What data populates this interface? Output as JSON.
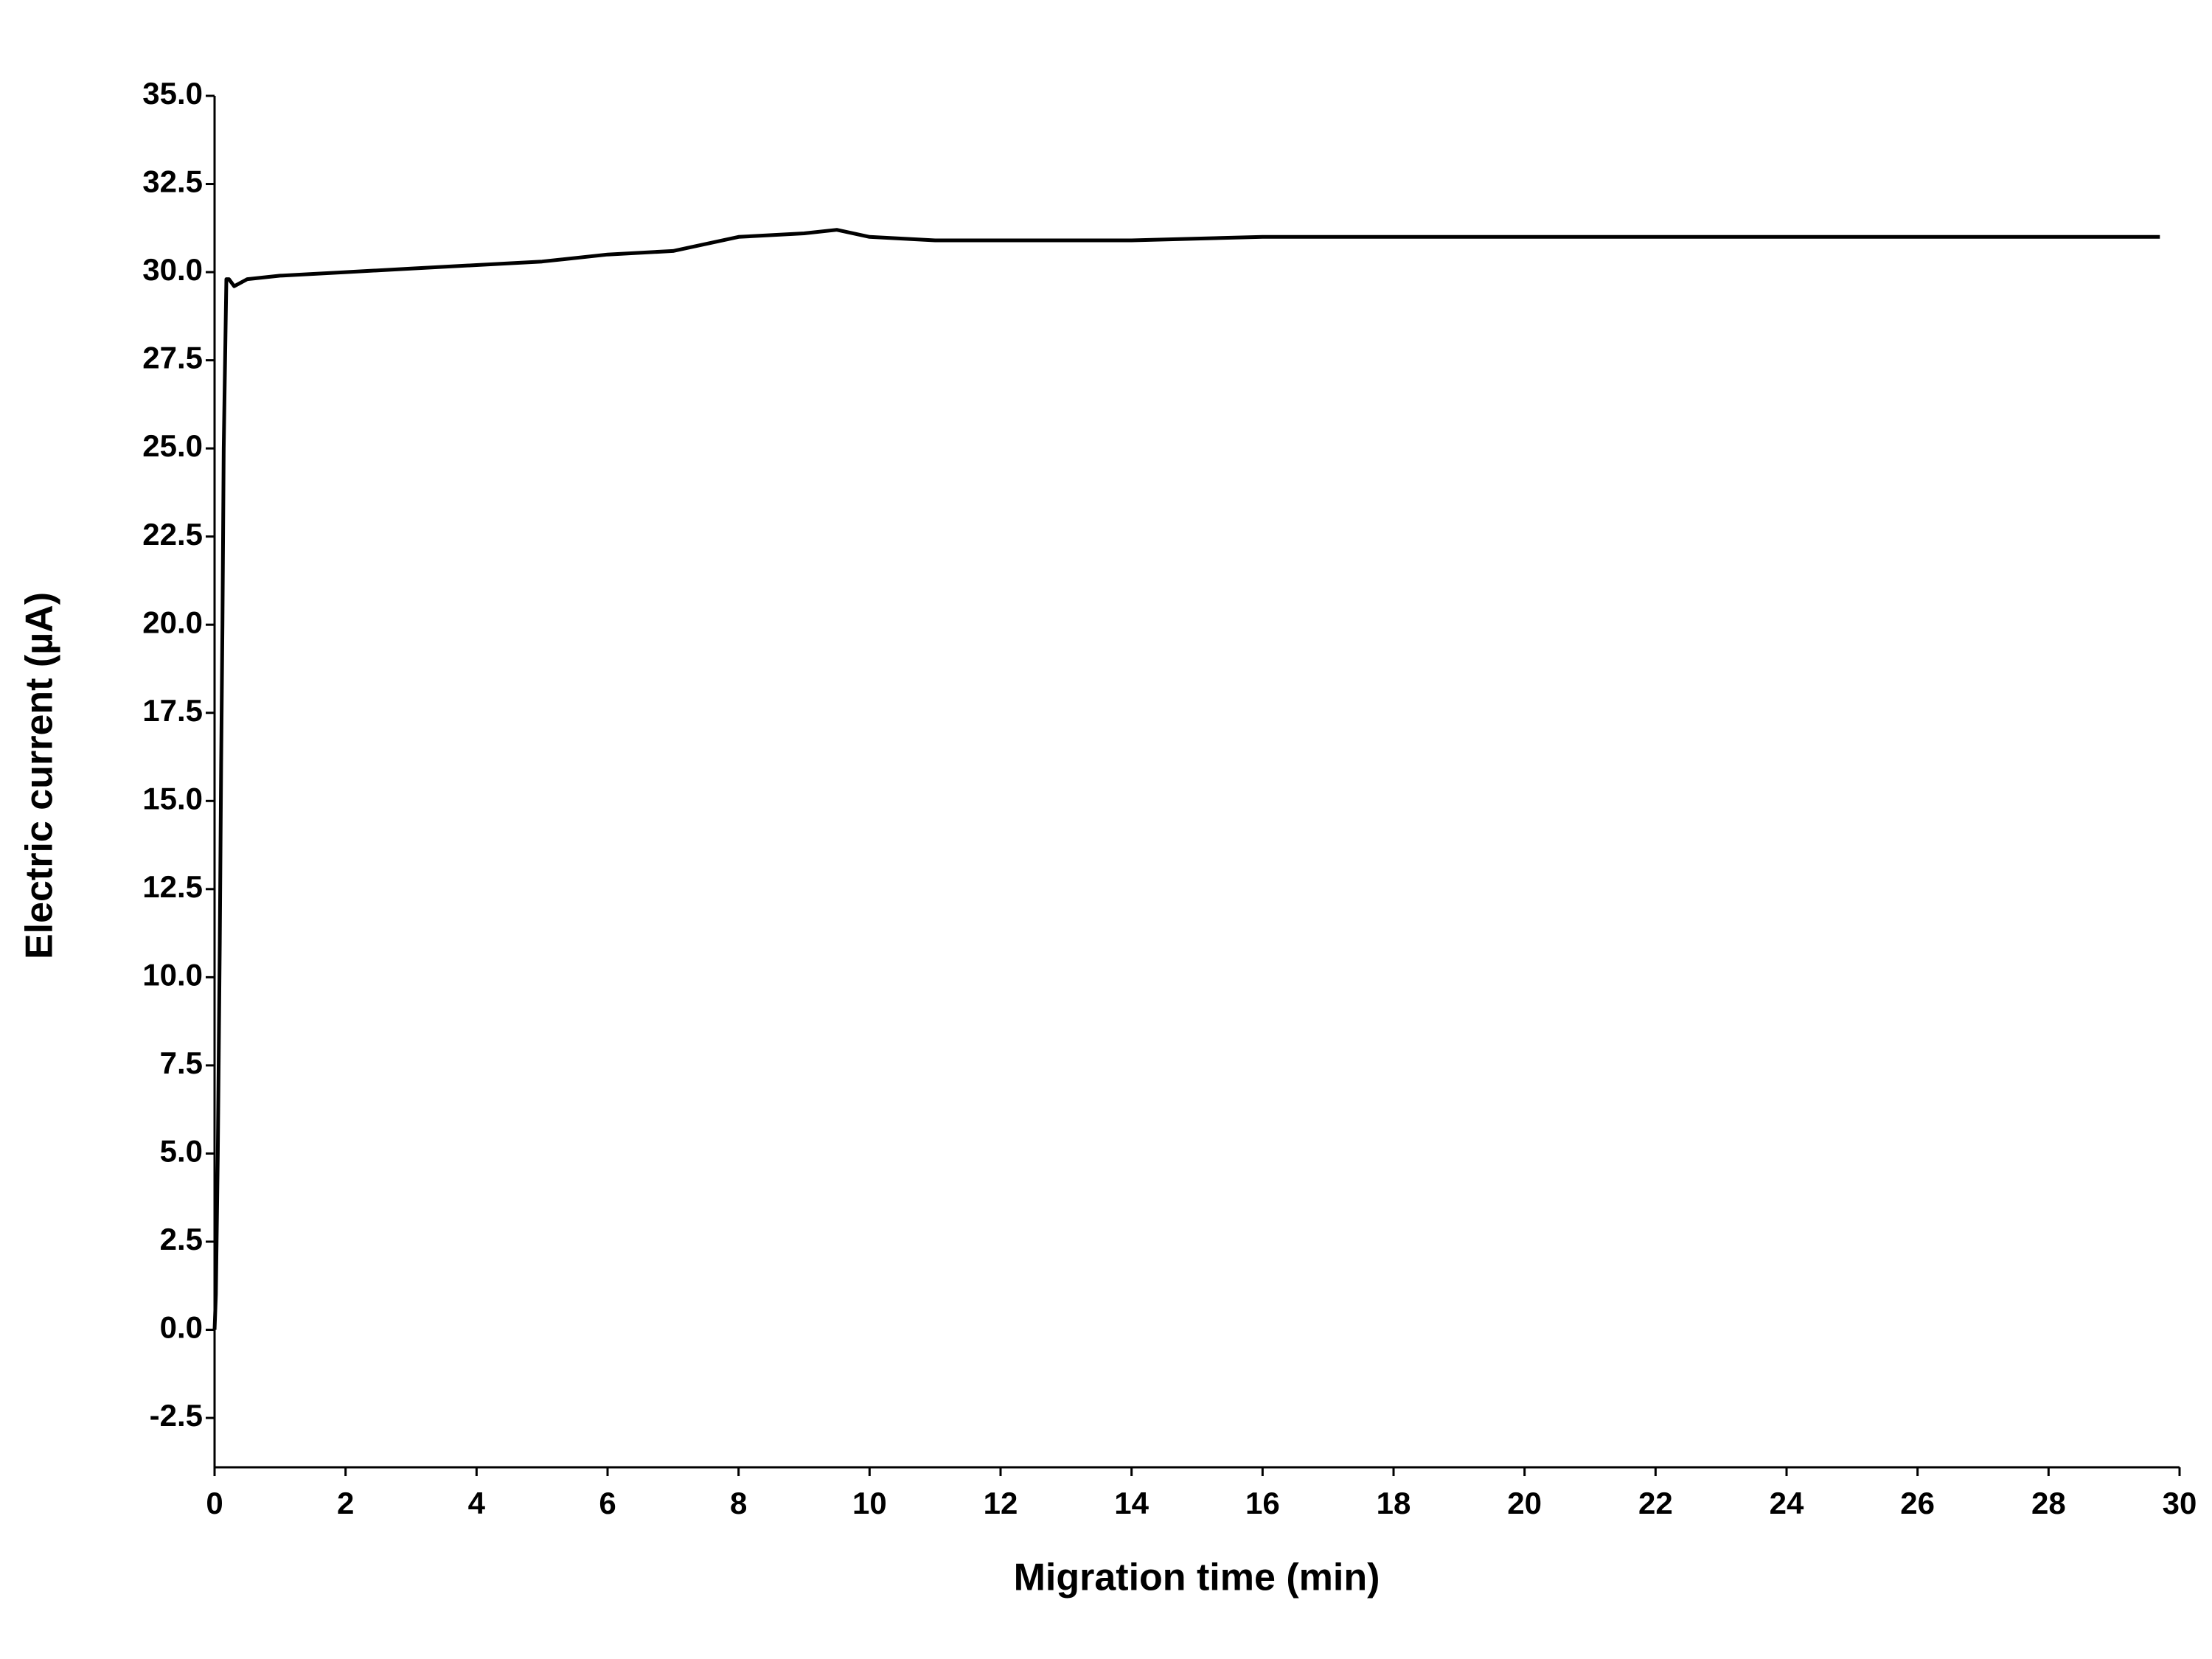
{
  "chart_data": {
    "type": "line",
    "x_label": "Migration time (min)",
    "y_label": "Electric current (µA)",
    "xlim": [
      0,
      30
    ],
    "ylim": [
      -3.9,
      35
    ],
    "xticks": [
      0,
      2,
      4,
      6,
      8,
      10,
      12,
      14,
      16,
      18,
      20,
      22,
      24,
      26,
      28,
      30
    ],
    "yticks": [
      {
        "value": -2.5,
        "label": "-2.5"
      },
      {
        "value": 0,
        "label": "0.0"
      },
      {
        "value": 2.5,
        "label": "2.5"
      },
      {
        "value": 5,
        "label": "5.0"
      },
      {
        "value": 7.5,
        "label": "7.5"
      },
      {
        "value": 10,
        "label": "10.0"
      },
      {
        "value": 12.5,
        "label": "12.5"
      },
      {
        "value": 15,
        "label": "15.0"
      },
      {
        "value": 17.5,
        "label": "17.5"
      },
      {
        "value": 20,
        "label": "20.0"
      },
      {
        "value": 22.5,
        "label": "22.5"
      },
      {
        "value": 25,
        "label": "25.0"
      },
      {
        "value": 27.5,
        "label": "27.5"
      },
      {
        "value": 30,
        "label": "30.0"
      },
      {
        "value": 32.5,
        "label": "32.5"
      },
      {
        "value": 35,
        "label": "35.0"
      }
    ],
    "x": [
      0,
      0.02,
      0.05,
      0.08,
      0.1,
      0.12,
      0.14,
      0.18,
      0.22,
      0.3,
      0.5,
      1,
      2,
      3,
      4,
      5,
      6,
      7,
      8,
      9,
      9.5,
      10,
      11,
      12,
      14,
      16,
      18,
      20,
      22,
      24,
      26,
      28,
      29.7
    ],
    "series": [
      {
        "color": "#000000",
        "values": [
          0,
          1,
          5,
          11,
          16,
          20,
          25,
          29.8,
          29.8,
          29.6,
          29.8,
          29.9,
          30.0,
          30.1,
          30.2,
          30.3,
          30.5,
          30.6,
          31.0,
          31.1,
          31.2,
          31.0,
          30.9,
          30.9,
          30.9,
          31.0,
          31.0,
          31.0,
          31.0,
          31.0,
          31.0,
          31.0,
          31.0
        ]
      }
    ]
  }
}
